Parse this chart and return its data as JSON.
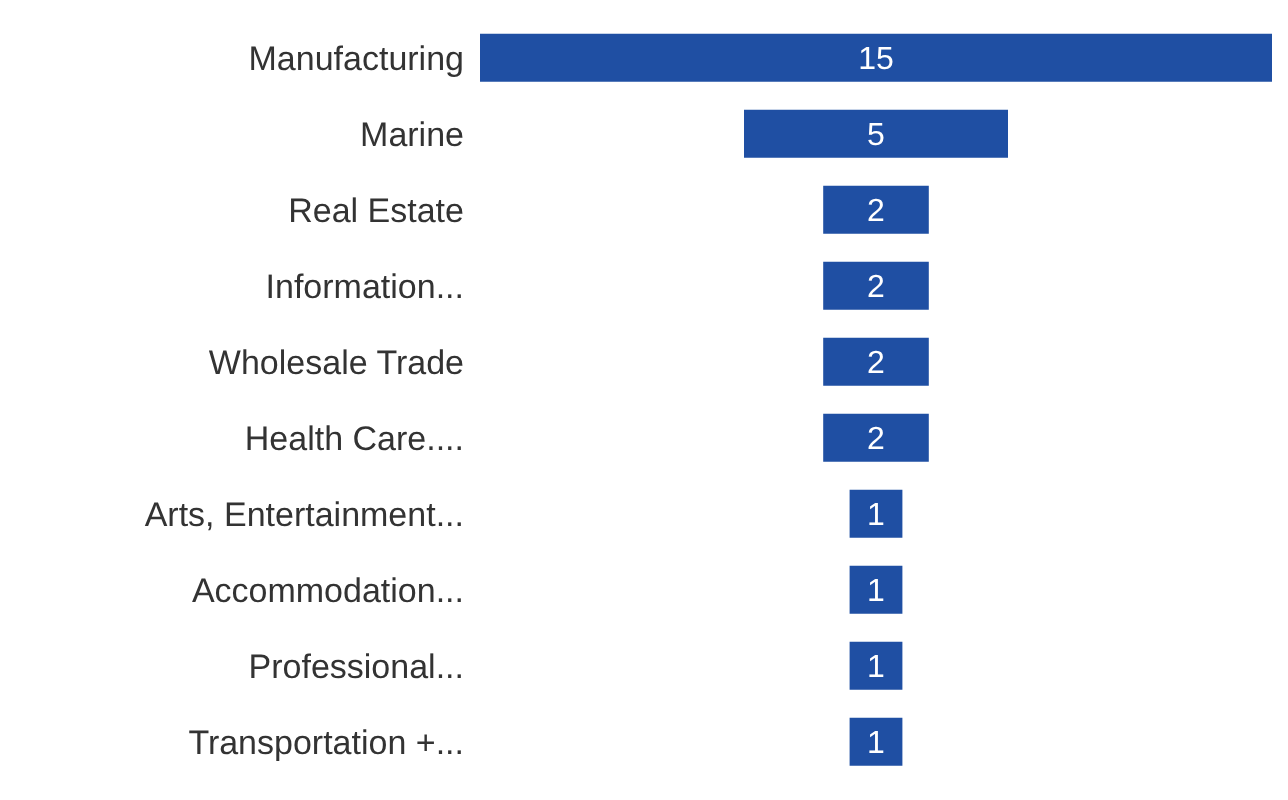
{
  "chart_data": {
    "type": "other",
    "categories": [
      "Manufacturing",
      "Marine",
      "Real Estate",
      "Information...",
      "Wholesale Trade",
      "Health Care....",
      "Arts, Entertainment...",
      "Accommodation...",
      "Professional...",
      "Transportation +..."
    ],
    "values": [
      15,
      5,
      2,
      2,
      2,
      2,
      1,
      1,
      1,
      1
    ],
    "color": "#1f4fa3",
    "data_labels": true
  }
}
